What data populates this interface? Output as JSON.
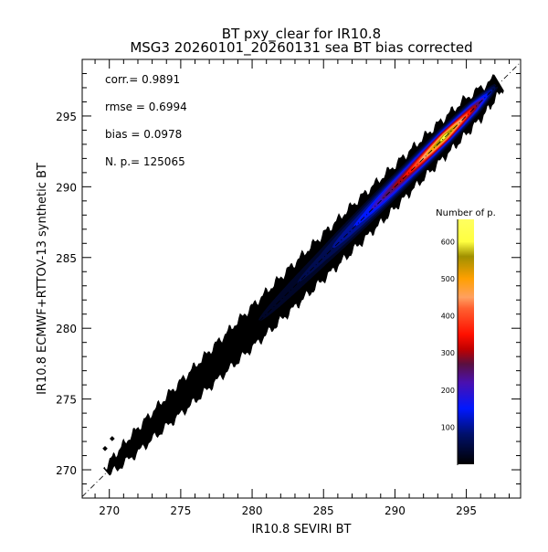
{
  "chart_data": {
    "type": "heatmap",
    "subtype": "density scatter",
    "title": "BT pxy_clear for IR10.8",
    "subtitle": "MSG3 20260101_20260131 sea BT bias corrected",
    "xlabel": "IR10.8 SEVIRI BT",
    "ylabel": "IR10.8 ECMWF+RTTOV-13 synthetic BT",
    "xlim": [
      268.1,
      298.8
    ],
    "ylim": [
      268.0,
      299.0
    ],
    "xticks": [
      270,
      275,
      280,
      285,
      290,
      295
    ],
    "yticks": [
      270,
      275,
      280,
      285,
      290,
      295
    ],
    "identity_line": true,
    "grid": false,
    "stats": [
      {
        "label": "corr.=",
        "value": "0.9891"
      },
      {
        "label": "rmse =",
        "value": "0.6994"
      },
      {
        "label": "bias =",
        "value": "0.0978"
      },
      {
        "label": "N. p.=",
        "value": "125065"
      }
    ],
    "colorbar": {
      "title": "Number of p.",
      "ticks": [
        100,
        200,
        300,
        400,
        500,
        600
      ],
      "range": [
        0,
        660
      ],
      "position": "right",
      "colormap": [
        {
          "v": 0,
          "c": "#000000"
        },
        {
          "v": 80,
          "c": "#00106a"
        },
        {
          "v": 150,
          "c": "#0018ff"
        },
        {
          "v": 220,
          "c": "#4a10b0"
        },
        {
          "v": 270,
          "c": "#5a1040"
        },
        {
          "v": 310,
          "c": "#c00000"
        },
        {
          "v": 350,
          "c": "#ff1000"
        },
        {
          "v": 420,
          "c": "#ff6030"
        },
        {
          "v": 450,
          "c": "#ffa060"
        },
        {
          "v": 500,
          "c": "#ffa000"
        },
        {
          "v": 560,
          "c": "#a09000"
        },
        {
          "v": 600,
          "c": "#ffff40"
        },
        {
          "v": 660,
          "c": "#ffff60"
        }
      ]
    },
    "density_profile": [
      {
        "x": 269.8,
        "peak": 2,
        "spread": 0.6
      },
      {
        "x": 271.5,
        "peak": 8,
        "spread": 1.1
      },
      {
        "x": 275,
        "peak": 15,
        "spread": 1.6
      },
      {
        "x": 280,
        "peak": 25,
        "spread": 2.0
      },
      {
        "x": 285,
        "peak": 80,
        "spread": 2.2
      },
      {
        "x": 288,
        "peak": 180,
        "spread": 2.2
      },
      {
        "x": 291,
        "peak": 380,
        "spread": 2.0
      },
      {
        "x": 293.5,
        "peak": 640,
        "spread": 1.9
      },
      {
        "x": 295.5,
        "peak": 350,
        "spread": 1.7
      },
      {
        "x": 297.3,
        "peak": 10,
        "spread": 0.9
      }
    ]
  }
}
